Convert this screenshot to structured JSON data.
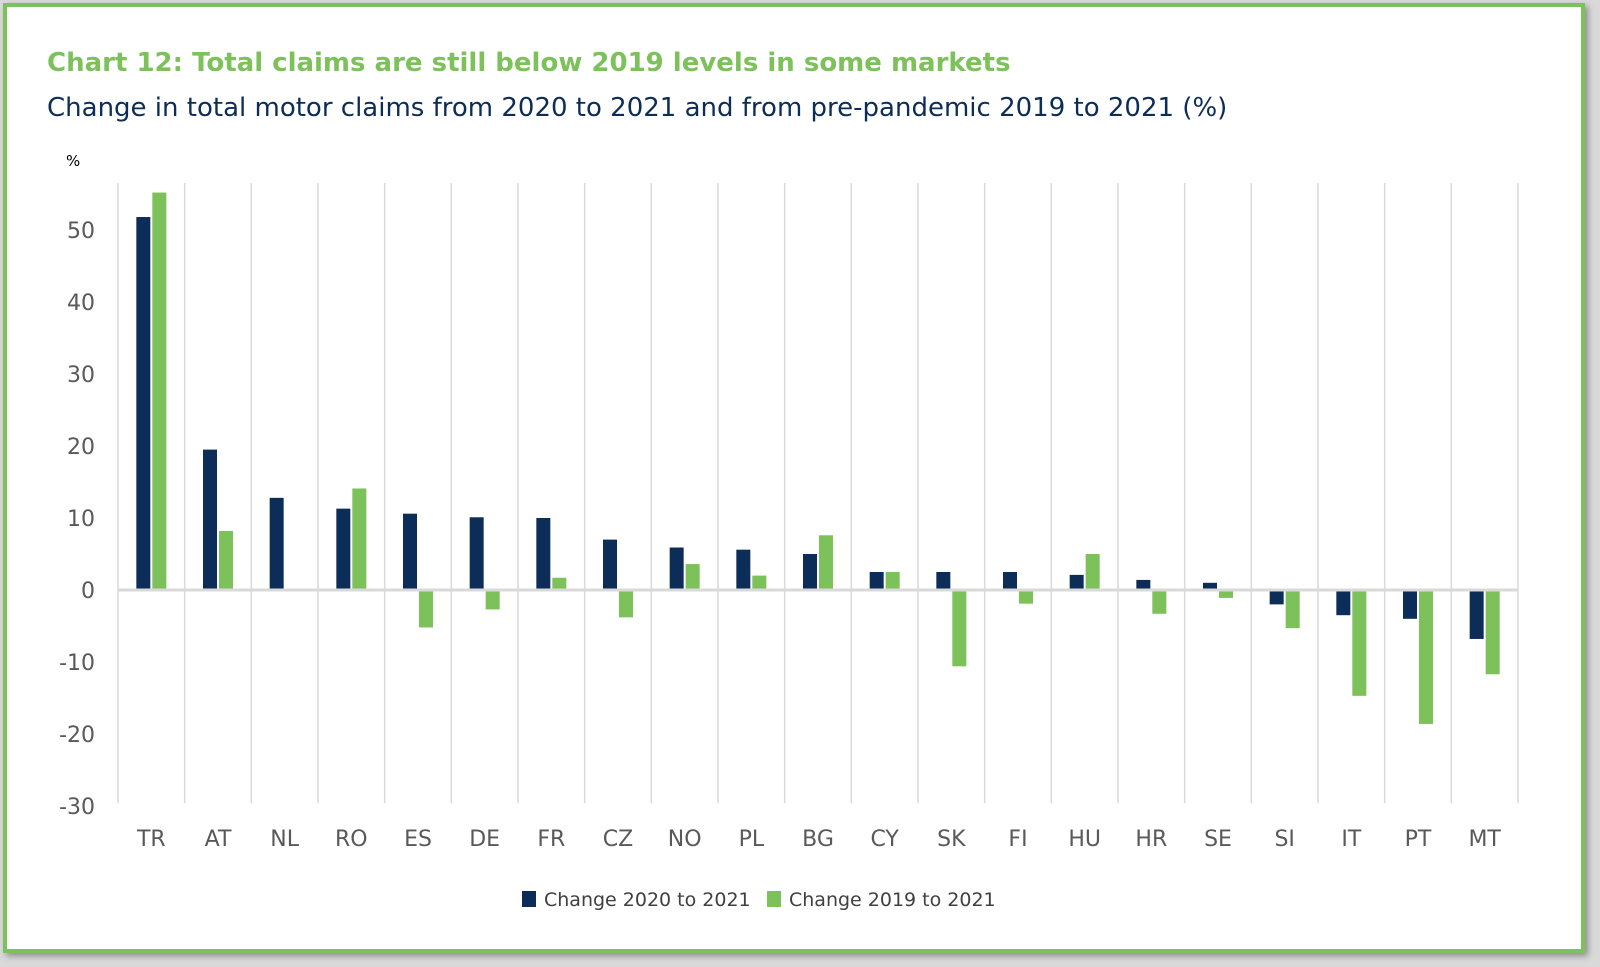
{
  "title": "Chart 12: Total claims are still below 2019 levels in some markets",
  "subtitle": "Change in total motor claims from 2020 to 2021 and from pre-pandemic 2019 to 2021 (%)",
  "colors": {
    "frame": "#7dc15b",
    "series1": "#0c2d57",
    "series2": "#7dc15b",
    "grid": "#d9d9d9",
    "zero_line": "#d9d9d9"
  },
  "chart_data": {
    "type": "bar",
    "ylabel": "%",
    "ylim": [
      -30,
      55
    ],
    "yticks": [
      -30,
      -20,
      -10,
      0,
      10,
      20,
      30,
      40,
      50
    ],
    "grid": "vertical separators",
    "legend_position": "bottom-center",
    "categories": [
      "TR",
      "AT",
      "NL",
      "RO",
      "ES",
      "DE",
      "FR",
      "CZ",
      "NO",
      "PL",
      "BG",
      "CY",
      "SK",
      "FI",
      "HU",
      "HR",
      "SE",
      "SI",
      "IT",
      "PT",
      "MT"
    ],
    "series": [
      {
        "name": "Change 2020 to 2021",
        "values": [
          51.8,
          19.5,
          12.8,
          11.3,
          10.6,
          10.1,
          10.0,
          7.0,
          5.9,
          5.6,
          5.0,
          2.5,
          2.5,
          2.5,
          2.1,
          1.4,
          1.0,
          -2.0,
          -3.5,
          -4.0,
          -6.8
        ]
      },
      {
        "name": "Change 2019 to 2021",
        "values": [
          55.2,
          8.2,
          0.0,
          14.1,
          -5.2,
          -2.7,
          1.7,
          -3.8,
          3.6,
          2.0,
          7.6,
          2.5,
          -10.6,
          -1.9,
          5.0,
          -3.3,
          -1.1,
          -5.3,
          -14.7,
          -18.6,
          -11.7
        ]
      }
    ]
  }
}
